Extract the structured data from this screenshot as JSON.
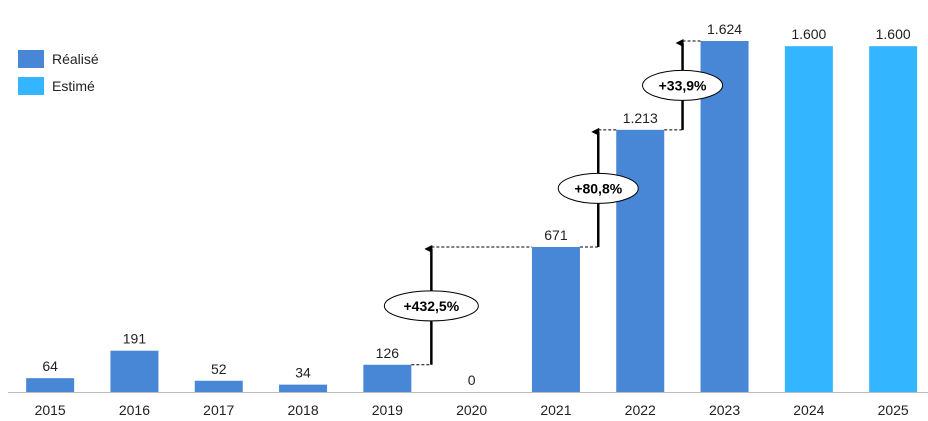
{
  "chart_data": {
    "type": "bar",
    "categories": [
      "2015",
      "2016",
      "2017",
      "2018",
      "2019",
      "2020",
      "2021",
      "2022",
      "2023",
      "2024",
      "2025"
    ],
    "values": [
      64,
      191,
      52,
      34,
      126,
      0,
      671,
      1213,
      1624,
      1600,
      1600
    ],
    "value_labels": [
      "64",
      "191",
      "52",
      "34",
      "126",
      "0",
      "671",
      "1.213",
      "1.624",
      "1.600",
      "1.600"
    ],
    "kinds": [
      "realise",
      "realise",
      "realise",
      "realise",
      "realise",
      "realise",
      "realise",
      "realise",
      "realise",
      "estime",
      "estime"
    ],
    "legend": [
      {
        "key": "realise",
        "label": "Réalisé",
        "color": "#4886D6"
      },
      {
        "key": "estime",
        "label": "Estimé",
        "color": "#33B5FF"
      }
    ],
    "growth_annotations": [
      {
        "from": "2019",
        "to": "2021",
        "label": "+432,5%"
      },
      {
        "from": "2021",
        "to": "2022",
        "label": "+80,8%"
      },
      {
        "from": "2022",
        "to": "2023",
        "label": "+33,9%"
      }
    ],
    "ylim": [
      0,
      1650
    ],
    "grid": false,
    "legend_position": "top-left"
  }
}
